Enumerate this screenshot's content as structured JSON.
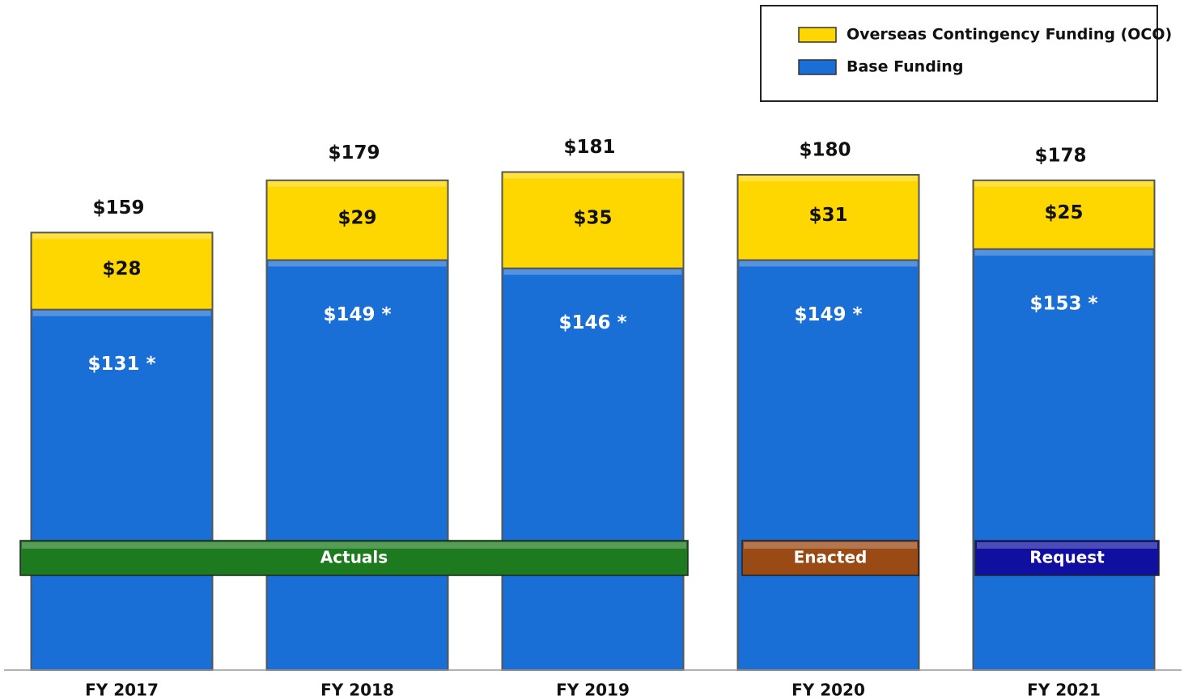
{
  "chart_data": {
    "type": "stacked-bar",
    "categories": [
      "FY 2017",
      "FY 2018",
      "FY 2019",
      "FY 2020",
      "FY 2021"
    ],
    "series": [
      {
        "name": "Base Funding",
        "color": "#1a6fd6",
        "values": [
          131,
          149,
          146,
          149,
          153
        ],
        "value_labels": [
          "$131 *",
          "$149 *",
          "$146 *",
          "$149 *",
          "$153 *"
        ]
      },
      {
        "name": "Overseas Contingency Funding (OCO)",
        "color": "#ffd700",
        "values": [
          28,
          29,
          35,
          31,
          25
        ],
        "value_labels": [
          "$28",
          "$29",
          "$35",
          "$31",
          "$25"
        ]
      }
    ],
    "totals": {
      "values": [
        159,
        179,
        181,
        180,
        178
      ],
      "value_labels": [
        "$159",
        "$179",
        "$181",
        "$180",
        "$178"
      ]
    },
    "annotations": [
      {
        "text": "Actuals",
        "color": "#1e7a1e"
      },
      {
        "text": "Enacted",
        "color": "#9a4a14"
      },
      {
        "text": "Request",
        "color": "#1010a0"
      }
    ],
    "ylim": [
      0,
      240
    ],
    "legend": "top-right"
  }
}
